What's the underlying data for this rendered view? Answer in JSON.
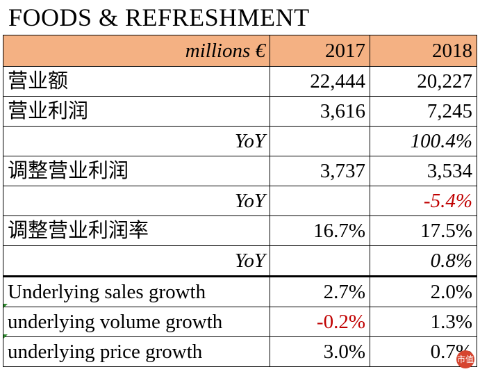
{
  "title": "FOODS & REFRESHMENT",
  "header": {
    "units": "millions €",
    "years": [
      "2017",
      "2018"
    ]
  },
  "rows": [
    {
      "label": "营业额",
      "v2017": "22,444",
      "v2018": "20,227"
    },
    {
      "label": "营业利润",
      "v2017": "3,616",
      "v2018": "7,245"
    },
    {
      "label": "YoY",
      "v2017": "",
      "v2018": "100.4%"
    },
    {
      "label": "调整营业利润",
      "v2017": "3,737",
      "v2018": "3,534"
    },
    {
      "label": "YoY",
      "v2017": "",
      "v2018": "-5.4%"
    },
    {
      "label": "调整营业利润率",
      "v2017": "16.7%",
      "v2018": "17.5%"
    },
    {
      "label": "YoY",
      "v2017": "",
      "v2018": "0.8%"
    },
    {
      "label": "Underlying sales growth",
      "v2017": "2.7%",
      "v2018": "2.0%"
    },
    {
      "label": "underlying volume growth",
      "v2017": "-0.2%",
      "v2018": "1.3%"
    },
    {
      "label": "underlying price growth",
      "v2017": "3.0%",
      "v2018": "0.7%"
    }
  ],
  "colors": {
    "header_bg": "#f4b183",
    "negative": "#c00000"
  },
  "watermark_badge": "市值"
}
